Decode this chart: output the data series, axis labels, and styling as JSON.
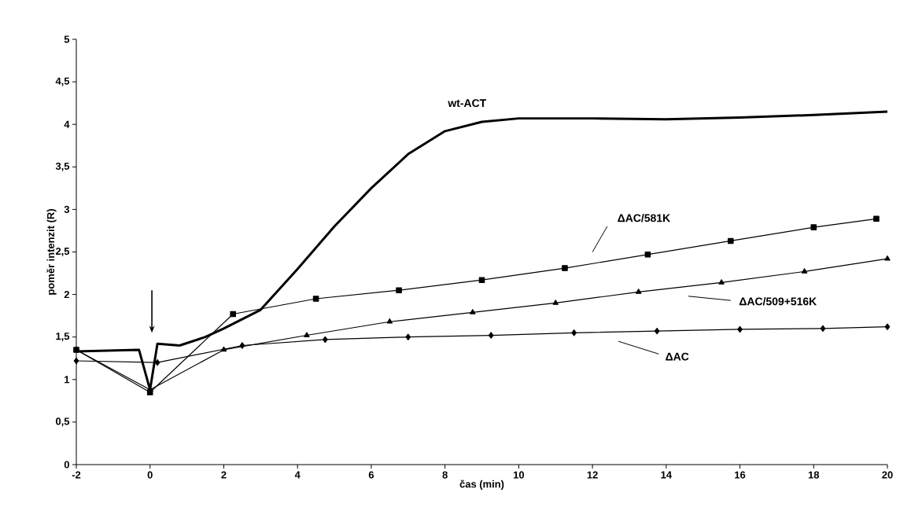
{
  "chart_data": {
    "type": "line",
    "xlabel": "čas (min)",
    "ylabel": "poměr intenzit (R)",
    "xlim": [
      -2,
      20
    ],
    "ylim": [
      0,
      5
    ],
    "xticks": [
      -2,
      0,
      2,
      4,
      6,
      8,
      10,
      12,
      14,
      16,
      18,
      20
    ],
    "yticks": [
      0,
      {
        "value": 0.5,
        "label": "0,5"
      },
      1,
      {
        "value": 1.5,
        "label": "1,5"
      },
      2,
      {
        "value": 2.5,
        "label": "2,5"
      },
      3,
      {
        "value": 3.5,
        "label": "3,5"
      },
      4,
      {
        "value": 4.5,
        "label": "4,5"
      },
      5
    ],
    "grid": false,
    "series": [
      {
        "name": "wt-ACT",
        "color": "#000000",
        "marker": "none",
        "x": [
          -2,
          -0.3,
          0,
          0.2,
          0.8,
          1.5,
          2,
          3,
          4,
          5,
          6,
          7,
          8,
          9,
          10,
          12,
          14,
          16,
          18,
          20
        ],
        "values": [
          1.33,
          1.35,
          0.88,
          1.42,
          1.4,
          1.5,
          1.6,
          1.82,
          2.3,
          2.8,
          3.25,
          3.65,
          3.92,
          4.03,
          4.07,
          4.07,
          4.06,
          4.08,
          4.11,
          4.15
        ]
      },
      {
        "name": "ΔAC/581K",
        "color": "#000000",
        "marker": "square",
        "x": [
          -2,
          0,
          2.25,
          4.5,
          6.75,
          9,
          11.25,
          13.5,
          15.75,
          18,
          19.7
        ],
        "values": [
          1.35,
          0.85,
          1.77,
          1.95,
          2.05,
          2.17,
          2.31,
          2.47,
          2.63,
          2.79,
          2.89
        ]
      },
      {
        "name": "ΔAC/509+516K",
        "color": "#000000",
        "marker": "triangle",
        "x": [
          -2,
          0,
          2,
          4.25,
          6.5,
          8.75,
          11,
          13.25,
          15.5,
          17.75,
          20
        ],
        "values": [
          1.35,
          0.88,
          1.35,
          1.52,
          1.68,
          1.79,
          1.9,
          2.03,
          2.14,
          2.27,
          2.42
        ]
      },
      {
        "name": "ΔAC",
        "color": "#000000",
        "marker": "diamond",
        "x": [
          -2,
          0.2,
          2.5,
          4.75,
          7,
          9.25,
          11.5,
          13.75,
          16,
          18.25,
          20
        ],
        "values": [
          1.22,
          1.2,
          1.4,
          1.47,
          1.5,
          1.52,
          1.55,
          1.57,
          1.59,
          1.6,
          1.62
        ]
      }
    ]
  }
}
